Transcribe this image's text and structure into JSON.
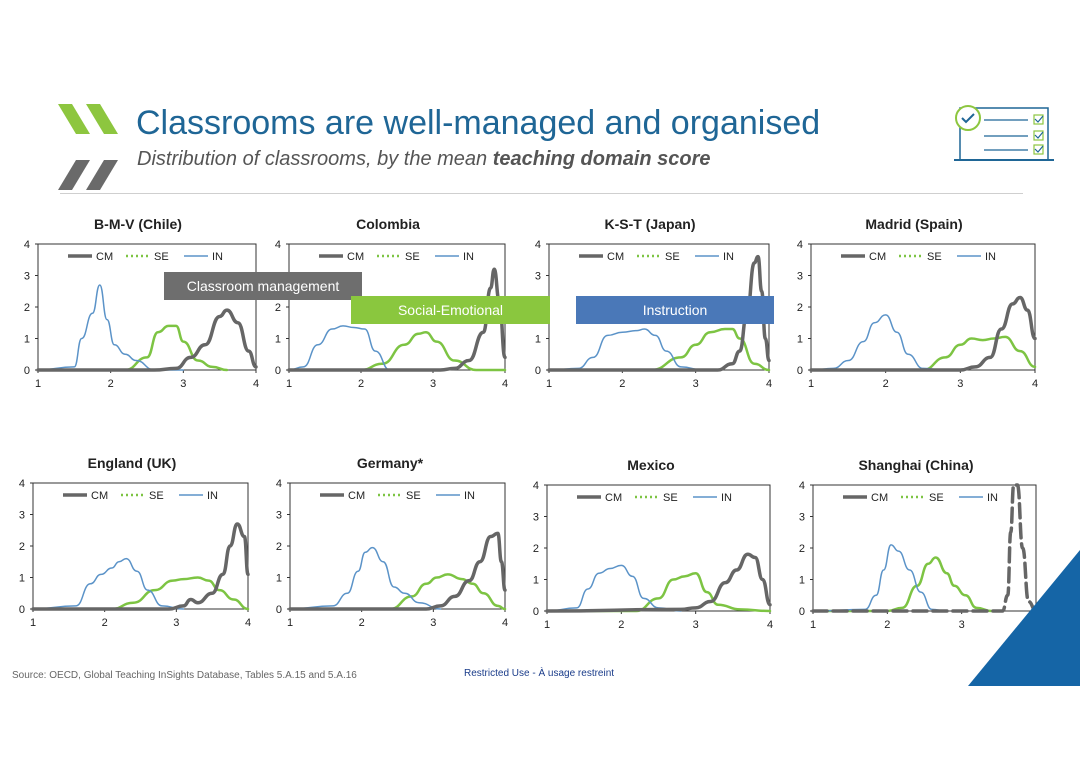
{
  "slide": {
    "title": "Classrooms are well-managed and organised",
    "subtitle_prefix": "Distribution of classrooms, by the mean ",
    "subtitle_bold": "teaching domain score",
    "source": "Source: OECD, Global Teaching InSights Database, Tables 5.A.15 and 5.A.16",
    "restricted": "Restricted Use - À usage restreint"
  },
  "callouts": {
    "cm": "Classroom management",
    "se": "Social-Emotional",
    "in": "Instruction"
  },
  "colors": {
    "CM": "#666666",
    "SE": "#7dc443",
    "IN": "#5b93c8",
    "title": "#1f6696",
    "accent": "#1565a6",
    "chevron": "#8dc63f"
  },
  "chart_data": [
    {
      "type": "line",
      "title": "B-M-V (Chile)",
      "xlim": [
        1,
        4
      ],
      "ylim": [
        0,
        4
      ],
      "series": [
        {
          "name": "CM",
          "x": [
            1,
            2.6,
            2.9,
            3.1,
            3.3,
            3.5,
            3.6,
            3.75,
            3.9,
            4
          ],
          "y": [
            0,
            0,
            0.05,
            0.4,
            0.8,
            1.7,
            1.9,
            1.5,
            0.6,
            0.1
          ]
        },
        {
          "name": "SE",
          "x": [
            1,
            2.2,
            2.5,
            2.65,
            2.8,
            2.9,
            3.0,
            3.2,
            3.4,
            3.6
          ],
          "y": [
            0,
            0,
            0.4,
            1.2,
            1.4,
            1.4,
            0.9,
            0.3,
            0.1,
            0
          ]
        },
        {
          "name": "IN",
          "x": [
            1,
            1.5,
            1.6,
            1.75,
            1.85,
            1.95,
            2.05,
            2.2,
            2.35,
            2.6,
            3
          ],
          "y": [
            0,
            0.1,
            1.0,
            1.8,
            2.7,
            1.6,
            0.8,
            0.5,
            0.3,
            0,
            0
          ]
        }
      ]
    },
    {
      "type": "line",
      "title": "Colombia",
      "xlim": [
        1,
        4
      ],
      "ylim": [
        0,
        4
      ],
      "series": [
        {
          "name": "CM",
          "x": [
            1,
            3.1,
            3.3,
            3.5,
            3.7,
            3.8,
            3.85,
            3.92,
            4
          ],
          "y": [
            0,
            0,
            0.05,
            0.3,
            1.2,
            2.6,
            3.2,
            2.2,
            0.4
          ]
        },
        {
          "name": "SE",
          "x": [
            1,
            2.0,
            2.3,
            2.6,
            2.8,
            2.9,
            3.05,
            3.3,
            3.6,
            4
          ],
          "y": [
            0,
            0,
            0.2,
            0.8,
            1.15,
            1.2,
            0.9,
            0.3,
            0,
            0
          ]
        },
        {
          "name": "IN",
          "x": [
            1,
            1.2,
            1.4,
            1.6,
            1.75,
            1.9,
            2.05,
            2.2,
            2.4,
            3
          ],
          "y": [
            0,
            0.1,
            0.8,
            1.3,
            1.4,
            1.35,
            1.3,
            0.6,
            0,
            0
          ]
        }
      ]
    },
    {
      "type": "line",
      "title": "K-S-T (Japan)",
      "xlim": [
        1,
        4
      ],
      "ylim": [
        0,
        4
      ],
      "series": [
        {
          "name": "CM",
          "x": [
            1,
            3.3,
            3.5,
            3.6,
            3.7,
            3.8,
            3.85,
            3.9,
            3.95,
            4
          ],
          "y": [
            0,
            0,
            0.2,
            0.6,
            1.8,
            3.4,
            3.6,
            2.5,
            1.0,
            0.3
          ]
        },
        {
          "name": "SE",
          "x": [
            1,
            2.4,
            2.8,
            3.0,
            3.2,
            3.4,
            3.5,
            3.6,
            3.8,
            4
          ],
          "y": [
            0,
            0,
            0.4,
            0.8,
            1.2,
            1.3,
            1.3,
            1.0,
            0.2,
            0
          ]
        },
        {
          "name": "IN",
          "x": [
            1,
            1.4,
            1.6,
            1.8,
            2.0,
            2.2,
            2.3,
            2.45,
            2.6,
            2.8,
            3.1
          ],
          "y": [
            0,
            0.05,
            0.4,
            1.1,
            1.2,
            1.25,
            1.3,
            1.1,
            0.6,
            0.1,
            0
          ]
        }
      ]
    },
    {
      "type": "line",
      "title": "Madrid (Spain)",
      "xlim": [
        1,
        4
      ],
      "ylim": [
        0,
        4
      ],
      "series": [
        {
          "name": "CM",
          "x": [
            1,
            3.0,
            3.2,
            3.4,
            3.55,
            3.7,
            3.8,
            3.9,
            4
          ],
          "y": [
            0,
            0,
            0.1,
            0.4,
            1.3,
            2.1,
            2.3,
            1.9,
            1.0
          ]
        },
        {
          "name": "SE",
          "x": [
            1,
            2.5,
            2.8,
            3.0,
            3.15,
            3.3,
            3.45,
            3.6,
            3.8,
            4
          ],
          "y": [
            0,
            0,
            0.4,
            0.8,
            1.0,
            0.95,
            1.0,
            1.05,
            0.6,
            0.1
          ]
        },
        {
          "name": "IN",
          "x": [
            1,
            1.3,
            1.5,
            1.7,
            1.85,
            2.0,
            2.15,
            2.3,
            2.5,
            2.8
          ],
          "y": [
            0,
            0.05,
            0.3,
            0.9,
            1.5,
            1.75,
            1.2,
            0.5,
            0.05,
            0
          ]
        }
      ]
    },
    {
      "type": "line",
      "title": "England (UK)",
      "xlim": [
        1,
        4
      ],
      "ylim": [
        0,
        4
      ],
      "series": [
        {
          "name": "CM",
          "x": [
            1,
            2.9,
            3.1,
            3.2,
            3.3,
            3.5,
            3.65,
            3.75,
            3.85,
            3.95,
            4
          ],
          "y": [
            0,
            0,
            0.1,
            0.3,
            0.2,
            0.5,
            1.1,
            2.0,
            2.7,
            2.3,
            1.1
          ]
        },
        {
          "name": "SE",
          "x": [
            1,
            2.1,
            2.4,
            2.7,
            2.95,
            3.1,
            3.3,
            3.45,
            3.6,
            3.8,
            4
          ],
          "y": [
            0,
            0,
            0.2,
            0.6,
            0.9,
            0.95,
            1.0,
            0.9,
            0.6,
            0.3,
            0
          ]
        },
        {
          "name": "IN",
          "x": [
            1,
            1.6,
            1.8,
            1.95,
            2.1,
            2.2,
            2.3,
            2.45,
            2.6,
            2.8,
            3.1
          ],
          "y": [
            0,
            0.1,
            0.8,
            1.1,
            1.3,
            1.5,
            1.6,
            1.2,
            0.6,
            0.1,
            0
          ]
        }
      ]
    },
    {
      "type": "line",
      "title": "Germany*",
      "xlim": [
        1,
        4
      ],
      "ylim": [
        0,
        4
      ],
      "series": [
        {
          "name": "CM",
          "x": [
            1,
            2.9,
            3.1,
            3.3,
            3.5,
            3.65,
            3.8,
            3.9,
            3.95,
            4
          ],
          "y": [
            0,
            0,
            0.1,
            0.4,
            0.9,
            1.5,
            2.3,
            2.4,
            1.5,
            0.6
          ]
        },
        {
          "name": "SE",
          "x": [
            1,
            2.4,
            2.7,
            2.9,
            3.05,
            3.2,
            3.4,
            3.55,
            3.7,
            3.9,
            4
          ],
          "y": [
            0,
            0,
            0.4,
            0.8,
            1.0,
            1.1,
            0.95,
            0.8,
            0.5,
            0.1,
            0
          ]
        },
        {
          "name": "IN",
          "x": [
            1,
            1.6,
            1.8,
            1.95,
            2.05,
            2.15,
            2.3,
            2.45,
            2.6,
            2.8,
            3.1
          ],
          "y": [
            0,
            0.1,
            0.5,
            1.2,
            1.8,
            1.95,
            1.5,
            0.7,
            0.5,
            0.2,
            0
          ]
        }
      ]
    },
    {
      "type": "line",
      "title": "Mexico",
      "xlim": [
        1,
        4
      ],
      "ylim": [
        0,
        4
      ],
      "series": [
        {
          "name": "CM",
          "x": [
            1,
            2.8,
            3.0,
            3.2,
            3.4,
            3.55,
            3.7,
            3.8,
            3.9,
            4
          ],
          "y": [
            0,
            0.05,
            0.1,
            0.3,
            0.9,
            1.3,
            1.8,
            1.7,
            1.0,
            0.2
          ]
        },
        {
          "name": "SE",
          "x": [
            1,
            2.2,
            2.5,
            2.7,
            2.85,
            3.0,
            3.15,
            3.3,
            3.6,
            4
          ],
          "y": [
            0,
            0,
            0.4,
            1.0,
            1.1,
            1.2,
            0.6,
            0.2,
            0.05,
            0
          ]
        },
        {
          "name": "IN",
          "x": [
            1,
            1.4,
            1.55,
            1.7,
            1.85,
            2.0,
            2.15,
            2.3,
            2.5,
            2.8
          ],
          "y": [
            0,
            0.1,
            0.7,
            1.2,
            1.35,
            1.45,
            1.1,
            0.4,
            0.1,
            0
          ]
        }
      ]
    },
    {
      "type": "line",
      "title": "Shanghai (China)",
      "xlim": [
        1,
        4
      ],
      "ylim": [
        0,
        4
      ],
      "series": [
        {
          "name": "CM",
          "x": [
            1,
            3.55,
            3.62,
            3.66,
            3.7,
            3.75,
            3.82,
            3.9,
            4
          ],
          "y": [
            0,
            0,
            0.5,
            2.5,
            4,
            4,
            2.0,
            0.3,
            0
          ]
        },
        {
          "name": "SE",
          "x": [
            1,
            2.0,
            2.2,
            2.4,
            2.55,
            2.65,
            2.8,
            2.9,
            3.05,
            3.2,
            3.4
          ],
          "y": [
            0,
            0,
            0.1,
            0.8,
            1.5,
            1.7,
            1.2,
            0.8,
            0.5,
            0.1,
            0
          ]
        },
        {
          "name": "IN",
          "x": [
            1,
            1.7,
            1.85,
            1.95,
            2.05,
            2.15,
            2.3,
            2.45,
            2.6,
            2.8
          ],
          "y": [
            0,
            0.05,
            0.5,
            1.3,
            2.1,
            1.9,
            1.3,
            0.6,
            0.05,
            0
          ]
        }
      ]
    }
  ]
}
